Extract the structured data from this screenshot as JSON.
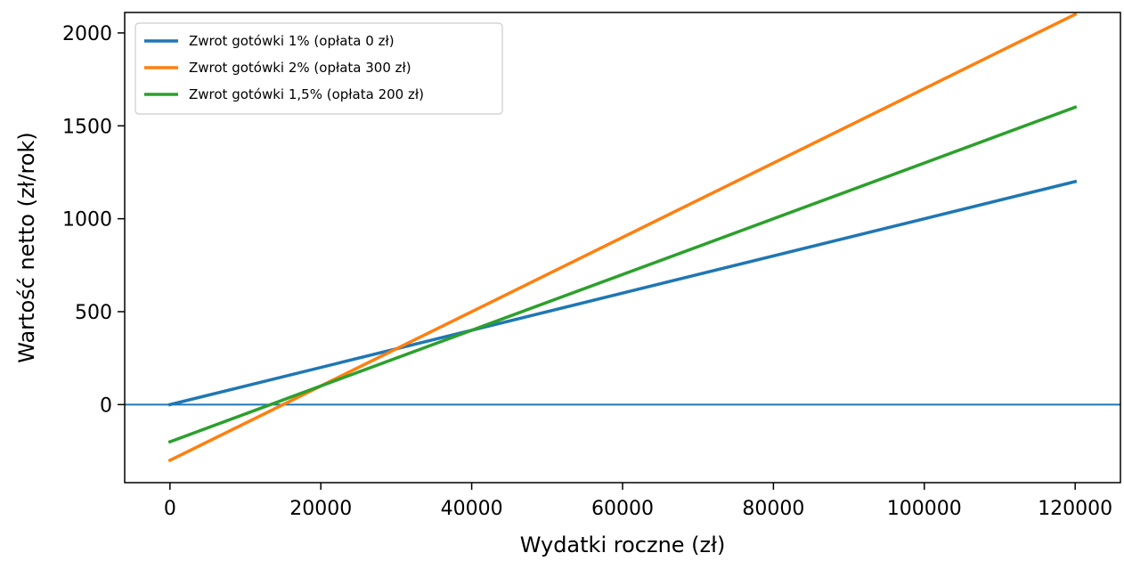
{
  "chart_data": {
    "type": "line",
    "title": "",
    "xlabel": "Wydatki roczne (zł)",
    "ylabel": "Wartość netto (zł/rok)",
    "xlim": [
      -6000,
      126000
    ],
    "ylim": [
      -420,
      2110
    ],
    "xticks": [
      0,
      20000,
      40000,
      60000,
      80000,
      100000,
      120000
    ],
    "yticks": [
      0,
      500,
      1000,
      1500,
      2000
    ],
    "grid": false,
    "legend_position": "upper-left",
    "hline": {
      "y": 0,
      "color": "#1f77b4"
    },
    "series": [
      {
        "name": "Zwrot gotówki 1% (opłata 0 zł)",
        "color": "#1f77b4",
        "x": [
          0,
          120000
        ],
        "y": [
          0,
          1200
        ]
      },
      {
        "name": "Zwrot gotówki 2% (opłata 300 zł)",
        "color": "#ff7f0e",
        "x": [
          0,
          120000
        ],
        "y": [
          -300,
          2100
        ]
      },
      {
        "name": "Zwrot gotówki 1,5% (opłata 200 zł)",
        "color": "#2ca02c",
        "x": [
          0,
          120000
        ],
        "y": [
          -200,
          1600
        ]
      }
    ]
  }
}
